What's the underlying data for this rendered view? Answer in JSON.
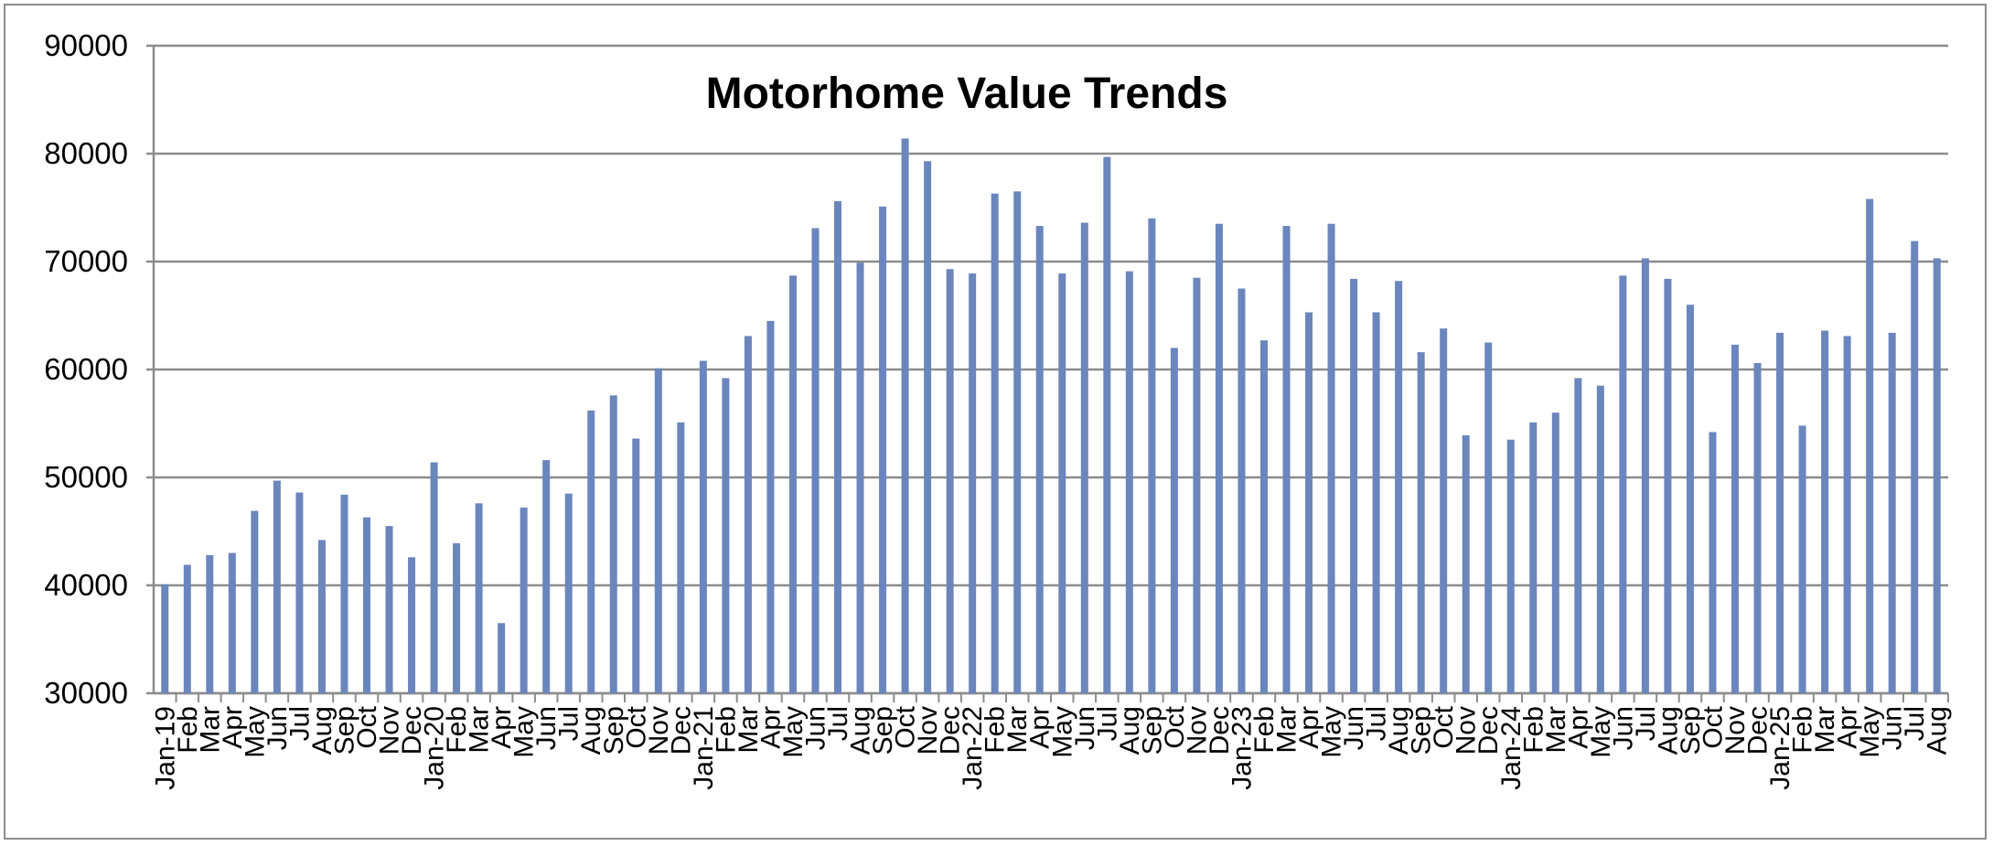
{
  "chart_data": {
    "type": "bar",
    "title": "Motorhome Value Trends",
    "xlabel": "",
    "ylabel": "",
    "ylim": [
      30000,
      90000
    ],
    "yticks": [
      30000,
      40000,
      50000,
      60000,
      70000,
      80000,
      90000
    ],
    "grid": true,
    "legend": "none",
    "bar_color": "#6a86bd",
    "categories": [
      "Jan-19",
      "Feb",
      "Mar",
      "Apr",
      "May",
      "Jun",
      "Jul",
      "Aug",
      "Sep",
      "Oct",
      "Nov",
      "Dec",
      "Jan-20",
      "Feb",
      "Mar",
      "Apr",
      "May",
      "Jun",
      "Jul",
      "Aug",
      "Sep",
      "Oct",
      "Nov",
      "Dec",
      "Jan-21",
      "Feb",
      "Mar",
      "Apr",
      "May",
      "Jun",
      "Jul",
      "Aug",
      "Sep",
      "Oct",
      "Nov",
      "Dec",
      "Jan-22",
      "Feb",
      "Mar",
      "Apr",
      "May",
      "Jun",
      "Jul",
      "Aug",
      "Sep",
      "Oct",
      "Nov",
      "Dec",
      "Jan-23",
      "Feb",
      "Mar",
      "Apr",
      "May",
      "Jun",
      "Jul",
      "Aug",
      "Sep",
      "Oct",
      "Nov",
      "Dec",
      "Jan-24",
      "Feb",
      "Mar",
      "Apr",
      "May",
      "Jun",
      "Jul",
      "Aug",
      "Sep",
      "Oct",
      "Nov",
      "Dec",
      "Jan-25",
      "Feb",
      "Mar",
      "Apr",
      "May",
      "Jun",
      "Jul",
      "Aug"
    ],
    "values": [
      40100,
      41900,
      42800,
      43000,
      46900,
      49700,
      48600,
      44200,
      48400,
      46300,
      45500,
      42600,
      51400,
      43900,
      47600,
      36500,
      47200,
      51600,
      48500,
      56200,
      57600,
      53600,
      60100,
      55100,
      60800,
      59200,
      63100,
      64500,
      68700,
      73100,
      75600,
      69900,
      75100,
      81400,
      79300,
      69300,
      68900,
      76300,
      76500,
      73300,
      68900,
      73600,
      79700,
      69100,
      74000,
      62000,
      68500,
      73500,
      67500,
      62700,
      73300,
      65300,
      73500,
      68400,
      65300,
      68200,
      61600,
      63800,
      53900,
      62500,
      53500,
      55100,
      56000,
      59200,
      58500,
      68700,
      70300,
      68400,
      66000,
      54200,
      62300,
      60600,
      63400,
      54800,
      63600,
      63100,
      75800,
      63400,
      71900,
      70300
    ]
  }
}
